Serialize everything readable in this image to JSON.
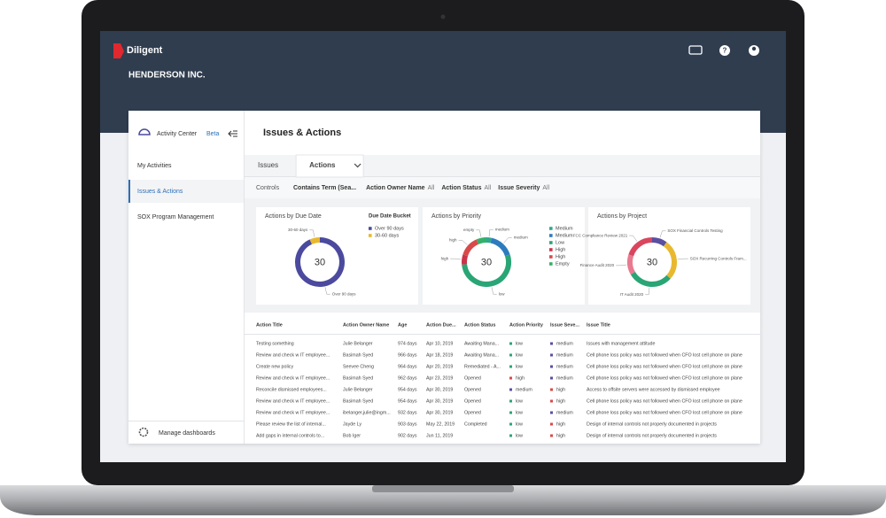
{
  "header": {
    "brand": "Diligent",
    "company": "HENDERSON INC."
  },
  "sidebar": {
    "title": "Activity Center",
    "badge": "Beta",
    "items": [
      "My Activities",
      "Issues & Actions",
      "SOX Program Management"
    ],
    "active": 1,
    "footer": "Manage dashboards"
  },
  "main": {
    "title": "Issues & Actions",
    "tabs": [
      "Issues",
      "Actions"
    ],
    "active_tab": 1,
    "filters_label": "Controls",
    "filters": [
      {
        "name": "Contains Term (Sea..."
      },
      {
        "name": "Action Owner Name",
        "value": "All"
      },
      {
        "name": "Action Status",
        "value": "All"
      },
      {
        "name": "Issue Severity",
        "value": "All"
      }
    ]
  },
  "charts": [
    {
      "type": "donut",
      "title": "Actions by Due Date",
      "total": 30,
      "legend_title": "Due Date Bucket",
      "categories": [
        "Over 90 days",
        "30-60 days"
      ],
      "values": [
        28,
        2
      ],
      "colors": [
        "#4b4a9e",
        "#e8b92f"
      ],
      "legend_order": [
        0,
        1
      ],
      "slice_labels": [
        "Over 90 days",
        "30-60 days"
      ]
    },
    {
      "type": "donut",
      "title": "Actions by Priority",
      "total": 30,
      "categories": [
        "Medium",
        "Medium",
        "Low",
        "High",
        "High",
        "Empty"
      ],
      "values": [
        1,
        5,
        16,
        2,
        4,
        2
      ],
      "colors": [
        "#2fa88e",
        "#2d7bbf",
        "#2aa576",
        "#c9344a",
        "#d84a4a",
        "#35b06a"
      ],
      "slice_labels": [
        "medium",
        "medium",
        "low",
        "high",
        "high",
        "empty"
      ]
    },
    {
      "type": "donut",
      "title": "Actions by Project",
      "total": 30,
      "categories": [
        "SOX Financial Controls Testing",
        "SOX Recurring Controls Fram...",
        "IT Audit 2020",
        "Finance Audit 2020",
        "FCC Compliance Review 2021"
      ],
      "values": [
        3,
        8,
        9,
        4,
        6
      ],
      "colors": [
        "#5a4fa0",
        "#e8b92f",
        "#2aa576",
        "#e87a90",
        "#d9465e"
      ]
    }
  ],
  "table": {
    "columns": [
      "Action Title",
      "Action Owner Name",
      "Age",
      "Action Due...",
      "Action Status",
      "Action Priority",
      "Issue Seve...",
      "Issue Title"
    ],
    "rows": [
      [
        "Testing something",
        "Julie Belanger",
        "974 days",
        "Apr 10, 2019",
        "Awaiting Mana...",
        "low",
        "medium",
        "Issues with management attitude"
      ],
      [
        "Review and check w IT employee...",
        "Basimah Syed",
        "966 days",
        "Apr 18, 2019",
        "Awaiting Mana...",
        "low",
        "medium",
        "Cell phone loss policy was not followed when CFO lost cell phone on plane"
      ],
      [
        "Create new policy",
        "Seevee Cheng",
        "964 days",
        "Apr 20, 2019",
        "Remediated - A...",
        "low",
        "medium",
        "Cell phone loss policy was not followed when CFO lost cell phone on plane"
      ],
      [
        "Review and check w IT employee...",
        "Basimah Syed",
        "962 days",
        "Apr 23, 2019",
        "Opened",
        "high",
        "medium",
        "Cell phone loss policy was not followed when CFO lost cell phone on plane"
      ],
      [
        "Reconcile dismissed employees...",
        "Julie Belanger",
        "954 days",
        "Apr 30, 2019",
        "Opened",
        "medium",
        "high",
        "Access to offsite servers were accessed by dismissed employee"
      ],
      [
        "Review and check w IT employee...",
        "Basimah Syed",
        "954 days",
        "Apr 30, 2019",
        "Opened",
        "low",
        "high",
        "Cell phone loss policy was not followed when CFO lost cell phone on plane"
      ],
      [
        "Review and check w IT employee...",
        "ibelanger,julie@ingm...",
        "932 days",
        "Apr 30, 2019",
        "Opened",
        "low",
        "medium",
        "Cell phone loss policy was not followed when CFO lost cell phone on plane"
      ],
      [
        "Please review the list of internal...",
        "Jayde Ly",
        "903 days",
        "May 22, 2019",
        "Completed",
        "low",
        "high",
        "Design of internal controls not properly documented in projects"
      ],
      [
        "Add gaps in internal controls to...",
        "Bob Iger",
        "902 days",
        "Jun 11, 2019",
        null,
        "low",
        "high",
        "Design of internal controls not properly documented in projects"
      ]
    ],
    "dot_colors": {
      "low": "#2aa576",
      "medium": "#5a4fa0",
      "high": "#d84a4a"
    }
  }
}
